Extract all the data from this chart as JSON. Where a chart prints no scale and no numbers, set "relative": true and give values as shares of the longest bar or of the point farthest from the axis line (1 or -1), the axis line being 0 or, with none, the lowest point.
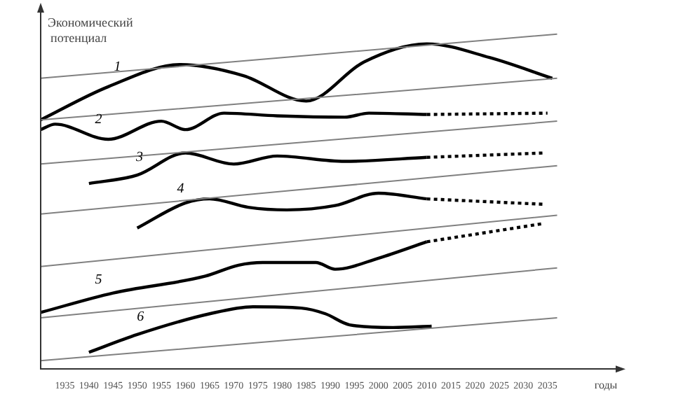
{
  "chart_data": {
    "type": "line",
    "relative": true,
    "ylabel": "Экономический потенциал",
    "xlabel": "годы",
    "xlim": [
      1930,
      2050
    ],
    "xticks": [
      1935,
      1940,
      1945,
      1950,
      1955,
      1960,
      1965,
      1970,
      1975,
      1980,
      1985,
      1990,
      1995,
      2000,
      2005,
      2010,
      2015,
      2020,
      2025,
      2030,
      2035
    ],
    "tick_labels": "x",
    "grid": false,
    "legend": false,
    "marker": "none",
    "series": [
      {
        "color": "#808080",
        "x": [
          1930,
          2037
        ],
        "values": [
          0.868,
          1.0
        ]
      },
      {
        "color": "#808080",
        "x": [
          1930,
          2037
        ],
        "values": [
          0.744,
          0.868
        ]
      },
      {
        "color": "#808080",
        "x": [
          1930,
          2037
        ],
        "values": [
          0.612,
          0.74
        ]
      },
      {
        "color": "#808080",
        "x": [
          1930,
          2037
        ],
        "values": [
          0.463,
          0.607
        ]
      },
      {
        "color": "#808080",
        "x": [
          1930,
          2037
        ],
        "values": [
          0.306,
          0.459
        ]
      },
      {
        "color": "#808080",
        "x": [
          1930,
          2037
        ],
        "values": [
          0.153,
          0.302
        ]
      },
      {
        "color": "#808080",
        "x": [
          1930,
          2037
        ],
        "values": [
          0.025,
          0.153
        ]
      },
      {
        "name": "1",
        "color": "#000000",
        "x": [
          1930,
          1944,
          1959,
          1972,
          1985,
          1997,
          2010,
          2023,
          2036
        ],
        "values": [
          0.744,
          0.843,
          0.909,
          0.876,
          0.8,
          0.917,
          0.971,
          0.93,
          0.868
        ]
      },
      {
        "name": "2",
        "color": "#000000",
        "x": [
          1930,
          1933,
          1944,
          1955,
          1960,
          1968,
          1979,
          1993,
          1998,
          2010
        ],
        "values": [
          0.715,
          0.731,
          0.686,
          0.74,
          0.715,
          0.764,
          0.756,
          0.752,
          0.764,
          0.76
        ]
      },
      {
        "color": "#000000",
        "line_style": "dotted",
        "x": [
          2010,
          2035
        ],
        "values": [
          0.76,
          0.764
        ]
      },
      {
        "name": "3",
        "color": "#000000",
        "x": [
          1940,
          1950,
          1960,
          1970,
          1979,
          1993,
          2010
        ],
        "values": [
          0.554,
          0.579,
          0.645,
          0.612,
          0.636,
          0.62,
          0.632
        ]
      },
      {
        "color": "#000000",
        "line_style": "dotted",
        "x": [
          2010,
          2034
        ],
        "values": [
          0.632,
          0.645
        ]
      },
      {
        "name": "4",
        "color": "#000000",
        "x": [
          1950,
          1960,
          1965,
          1973,
          1981,
          1991,
          2000,
          2010
        ],
        "values": [
          0.421,
          0.496,
          0.508,
          0.483,
          0.475,
          0.488,
          0.525,
          0.508
        ]
      },
      {
        "color": "#000000",
        "line_style": "dotted",
        "x": [
          2010,
          2034
        ],
        "values": [
          0.508,
          0.492
        ]
      },
      {
        "name": "5",
        "color": "#000000",
        "x": [
          1930,
          1945,
          1964,
          1971,
          1976,
          1987,
          1991,
          2000,
          2010
        ],
        "values": [
          0.169,
          0.227,
          0.277,
          0.31,
          0.318,
          0.318,
          0.298,
          0.331,
          0.38
        ]
      },
      {
        "color": "#000000",
        "line_style": "dotted",
        "x": [
          2010,
          2034
        ],
        "values": [
          0.38,
          0.434
        ]
      },
      {
        "name": "6",
        "color": "#000000",
        "x": [
          1940,
          1950,
          1965,
          1974,
          1984,
          1989,
          1994,
          2003,
          2011
        ],
        "values": [
          0.05,
          0.103,
          0.165,
          0.186,
          0.182,
          0.165,
          0.132,
          0.124,
          0.128
        ]
      }
    ]
  }
}
